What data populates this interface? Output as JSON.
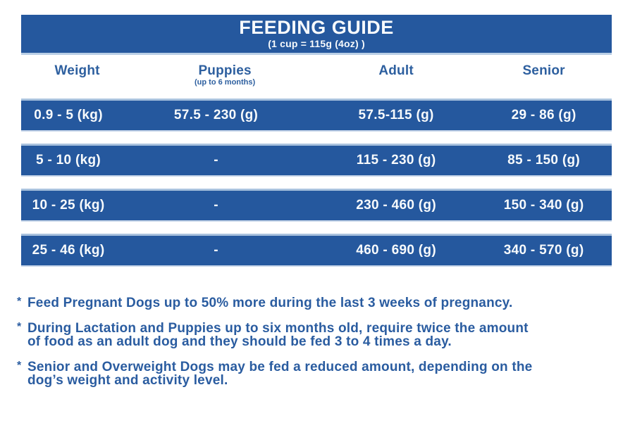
{
  "header": {
    "title": "FEEDING GUIDE",
    "subtitle": "(1 cup = 115g (4oz) )"
  },
  "columns": [
    {
      "label": "Weight"
    },
    {
      "label": "Puppies",
      "sub": "(up to 6 months)"
    },
    {
      "label": "Adult"
    },
    {
      "label": "Senior"
    }
  ],
  "rows": [
    {
      "weight": "0.9 - 5 (kg)",
      "puppies": "57.5 - 230 (g)",
      "adult": "57.5-115 (g)",
      "senior": "29 - 86 (g)"
    },
    {
      "weight": "5 - 10 (kg)",
      "puppies": "-",
      "adult": "115 - 230 (g)",
      "senior": "85 - 150 (g)"
    },
    {
      "weight": "10 - 25 (kg)",
      "puppies": "-",
      "adult": "230 - 460 (g)",
      "senior": "150 - 340 (g)"
    },
    {
      "weight": "25 - 46 (kg)",
      "puppies": "-",
      "adult": "460 - 690 (g)",
      "senior": "340 - 570 (g)"
    }
  ],
  "footnotes": [
    {
      "marker": "*",
      "lines": [
        "Feed Pregnant Dogs up to 50% more during the last 3 weeks of pregnancy."
      ]
    },
    {
      "marker": "*",
      "lines": [
        "During Lactation and Puppies up to six months old, require twice the amount",
        "of food as an adult dog and they should be fed 3 to 4 times a day."
      ]
    },
    {
      "marker": "*",
      "lines": [
        "Senior and Overweight Dogs may be fed a reduced amount, depending on the",
        "dog’s weight and activity level."
      ]
    }
  ],
  "colors": {
    "bar_blue": "#25589e",
    "light_edge": "#b9cfe6",
    "heading_text_blue": "#2d5f9f",
    "footnote_text_blue": "#2a5ca0",
    "row_text": "#f7fafc"
  }
}
